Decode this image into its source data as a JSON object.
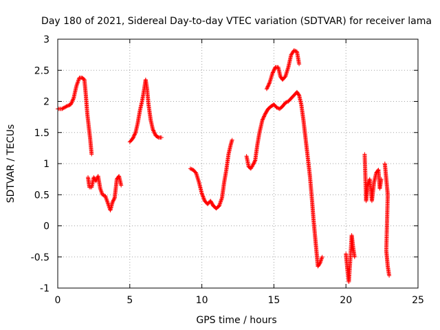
{
  "chart_data": {
    "type": "scatter",
    "title": "Day 180 of 2021, Sidereal Day-to-day VTEC variation (SDTVAR) for receiver lama",
    "xlabel": "GPS time / hours",
    "ylabel": "SDTVAR / TECUs",
    "xlim": [
      0,
      25
    ],
    "ylim": [
      -1,
      3
    ],
    "xticks": [
      "0",
      "5",
      "10",
      "15",
      "20",
      "25"
    ],
    "yticks": [
      "3",
      "2.5",
      "2",
      "1.5",
      "1",
      "0.5",
      "0",
      "-0.5",
      "-1"
    ],
    "grid": true,
    "marker": "+",
    "color": "#ff0000",
    "series": [
      {
        "name": "SDTVAR",
        "segments": [
          [
            [
              0.0,
              1.88
            ],
            [
              0.3,
              1.88
            ],
            [
              0.6,
              1.92
            ],
            [
              0.9,
              1.95
            ],
            [
              1.1,
              2.05
            ],
            [
              1.3,
              2.25
            ],
            [
              1.5,
              2.38
            ],
            [
              1.7,
              2.38
            ],
            [
              1.85,
              2.35
            ],
            [
              1.95,
              2.1
            ],
            [
              2.05,
              1.8
            ],
            [
              2.15,
              1.6
            ],
            [
              2.25,
              1.4
            ],
            [
              2.35,
              1.15
            ]
          ],
          [
            [
              2.1,
              0.78
            ],
            [
              2.2,
              0.62
            ],
            [
              2.35,
              0.62
            ],
            [
              2.5,
              0.78
            ],
            [
              2.65,
              0.72
            ],
            [
              2.8,
              0.8
            ],
            [
              2.95,
              0.6
            ],
            [
              3.1,
              0.5
            ],
            [
              3.3,
              0.48
            ],
            [
              3.5,
              0.35
            ],
            [
              3.65,
              0.25
            ],
            [
              3.8,
              0.38
            ],
            [
              3.95,
              0.45
            ],
            [
              4.1,
              0.75
            ],
            [
              4.25,
              0.8
            ],
            [
              4.4,
              0.65
            ]
          ],
          [
            [
              5.0,
              1.35
            ],
            [
              5.2,
              1.4
            ],
            [
              5.4,
              1.5
            ],
            [
              5.55,
              1.65
            ],
            [
              5.7,
              1.85
            ],
            [
              5.85,
              2.0
            ],
            [
              6.0,
              2.2
            ],
            [
              6.1,
              2.35
            ],
            [
              6.2,
              2.2
            ],
            [
              6.3,
              1.95
            ],
            [
              6.45,
              1.7
            ],
            [
              6.6,
              1.55
            ],
            [
              6.8,
              1.45
            ],
            [
              7.0,
              1.42
            ],
            [
              7.2,
              1.42
            ]
          ],
          [
            [
              9.2,
              0.92
            ],
            [
              9.4,
              0.9
            ],
            [
              9.6,
              0.85
            ],
            [
              9.8,
              0.7
            ],
            [
              10.0,
              0.52
            ],
            [
              10.2,
              0.4
            ],
            [
              10.4,
              0.35
            ],
            [
              10.6,
              0.4
            ],
            [
              10.8,
              0.32
            ],
            [
              11.0,
              0.28
            ],
            [
              11.2,
              0.32
            ],
            [
              11.4,
              0.45
            ],
            [
              11.55,
              0.7
            ],
            [
              11.7,
              0.9
            ],
            [
              11.85,
              1.15
            ],
            [
              12.0,
              1.3
            ],
            [
              12.1,
              1.38
            ]
          ],
          [
            [
              13.1,
              1.12
            ],
            [
              13.25,
              0.95
            ],
            [
              13.4,
              0.92
            ],
            [
              13.55,
              0.98
            ],
            [
              13.7,
              1.05
            ],
            [
              13.85,
              1.3
            ],
            [
              14.0,
              1.5
            ],
            [
              14.2,
              1.7
            ],
            [
              14.4,
              1.8
            ],
            [
              14.6,
              1.88
            ],
            [
              14.8,
              1.92
            ],
            [
              15.0,
              1.95
            ],
            [
              15.2,
              1.9
            ],
            [
              15.4,
              1.88
            ],
            [
              15.6,
              1.92
            ],
            [
              15.8,
              1.98
            ],
            [
              16.0,
              2.0
            ],
            [
              16.2,
              2.05
            ],
            [
              16.4,
              2.1
            ],
            [
              16.6,
              2.15
            ],
            [
              16.75,
              2.1
            ],
            [
              16.9,
              1.95
            ],
            [
              17.05,
              1.7
            ],
            [
              17.2,
              1.4
            ],
            [
              17.35,
              1.1
            ],
            [
              17.5,
              0.8
            ],
            [
              17.65,
              0.4
            ],
            [
              17.75,
              0.1
            ],
            [
              17.85,
              -0.15
            ],
            [
              17.95,
              -0.4
            ],
            [
              18.05,
              -0.65
            ],
            [
              18.2,
              -0.6
            ],
            [
              18.35,
              -0.5
            ]
          ],
          [
            [
              14.5,
              2.2
            ],
            [
              14.7,
              2.3
            ],
            [
              14.9,
              2.45
            ],
            [
              15.1,
              2.55
            ],
            [
              15.3,
              2.55
            ],
            [
              15.45,
              2.4
            ],
            [
              15.6,
              2.35
            ],
            [
              15.8,
              2.4
            ],
            [
              16.0,
              2.55
            ],
            [
              16.2,
              2.75
            ],
            [
              16.4,
              2.82
            ],
            [
              16.6,
              2.8
            ],
            [
              16.75,
              2.6
            ]
          ],
          [
            [
              20.0,
              -0.45
            ],
            [
              20.1,
              -0.7
            ],
            [
              20.2,
              -0.9
            ],
            [
              20.3,
              -0.55
            ],
            [
              20.4,
              -0.15
            ],
            [
              20.5,
              -0.35
            ],
            [
              20.6,
              -0.5
            ]
          ],
          [
            [
              21.3,
              1.15
            ],
            [
              21.4,
              0.4
            ],
            [
              21.5,
              0.65
            ],
            [
              21.65,
              0.75
            ],
            [
              21.8,
              0.4
            ],
            [
              21.95,
              0.7
            ],
            [
              22.1,
              0.85
            ],
            [
              22.25,
              0.9
            ],
            [
              22.35,
              0.6
            ],
            [
              22.45,
              0.75
            ]
          ],
          [
            [
              22.7,
              1.0
            ],
            [
              22.8,
              0.75
            ],
            [
              22.9,
              0.5
            ],
            [
              22.8,
              -0.4
            ],
            [
              22.9,
              -0.65
            ],
            [
              23.0,
              -0.8
            ]
          ]
        ]
      }
    ]
  }
}
